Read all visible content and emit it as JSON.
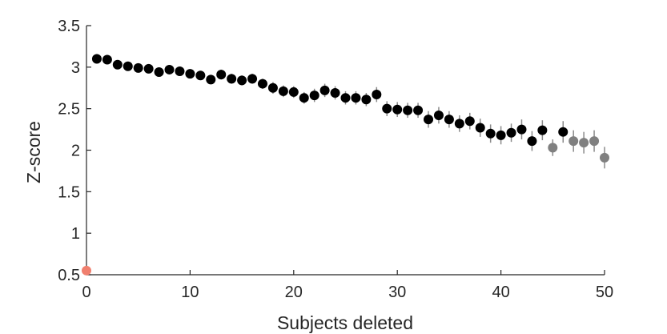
{
  "chart_data": {
    "type": "scatter",
    "title": "",
    "xlabel": "Subjects deleted",
    "ylabel": "Z-score",
    "xlim": [
      0,
      50
    ],
    "ylim": [
      0.5,
      3.5
    ],
    "xticks": [
      "0",
      "10",
      "20",
      "30",
      "40",
      "50"
    ],
    "yticks": [
      "0.5",
      "1",
      "1.5",
      "2",
      "2.5",
      "3",
      "3.5"
    ],
    "grid": false,
    "colors": {
      "baseline": "#f07f6e",
      "main": "#000000",
      "late": "#808080",
      "errorbar": "#8a8a8a",
      "axis": "#262626"
    },
    "series": [
      {
        "x": [
          0
        ],
        "y": [
          0.55
        ],
        "err": [
          0
        ],
        "color": "baseline"
      },
      {
        "x": [
          1,
          2,
          3,
          4,
          5,
          6,
          7,
          8,
          9,
          10,
          11,
          12,
          13,
          14,
          15,
          16,
          17,
          18,
          19,
          20,
          21,
          22,
          23,
          24,
          25,
          26,
          27,
          28,
          29,
          30,
          31,
          32,
          33,
          34,
          35,
          36,
          37,
          38,
          39,
          40,
          41,
          42,
          43,
          44,
          46
        ],
        "y": [
          3.1,
          3.09,
          3.03,
          3.01,
          2.99,
          2.98,
          2.94,
          2.97,
          2.95,
          2.92,
          2.9,
          2.85,
          2.91,
          2.86,
          2.84,
          2.86,
          2.8,
          2.75,
          2.71,
          2.7,
          2.63,
          2.66,
          2.72,
          2.69,
          2.63,
          2.63,
          2.61,
          2.67,
          2.5,
          2.49,
          2.48,
          2.48,
          2.37,
          2.42,
          2.37,
          2.32,
          2.35,
          2.27,
          2.2,
          2.18,
          2.21,
          2.25,
          2.11,
          2.24,
          2.22
        ],
        "err": [
          0.02,
          0.02,
          0.03,
          0.03,
          0.03,
          0.04,
          0.04,
          0.04,
          0.04,
          0.05,
          0.05,
          0.05,
          0.06,
          0.06,
          0.06,
          0.06,
          0.06,
          0.07,
          0.07,
          0.07,
          0.07,
          0.08,
          0.08,
          0.08,
          0.08,
          0.08,
          0.08,
          0.09,
          0.09,
          0.09,
          0.09,
          0.09,
          0.1,
          0.1,
          0.1,
          0.1,
          0.1,
          0.11,
          0.11,
          0.11,
          0.11,
          0.12,
          0.12,
          0.12,
          0.13
        ],
        "color": "main"
      },
      {
        "x": [
          45,
          47,
          48,
          49,
          50
        ],
        "y": [
          2.03,
          2.11,
          2.09,
          2.11,
          1.91
        ],
        "err": [
          0.1,
          0.13,
          0.13,
          0.13,
          0.13
        ],
        "color": "late"
      }
    ]
  }
}
